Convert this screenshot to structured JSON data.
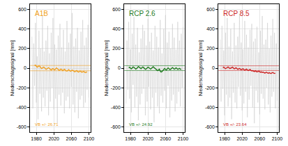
{
  "chart_data": [
    {
      "type": "line",
      "title": "A1B",
      "color": "#f0a020",
      "y_label": "Niederschlagssignal [mm]",
      "annotation": "VB +/- 26.71",
      "vb_band": 26.71,
      "x": [
        1970,
        1972,
        1974,
        1976,
        1978,
        1980,
        1982,
        1984,
        1986,
        1988,
        1990,
        1992,
        1994,
        1996,
        1998,
        2000,
        2002,
        2004,
        2006,
        2008,
        2010,
        2012,
        2014,
        2016,
        2018,
        2020,
        2022,
        2024,
        2026,
        2028,
        2030,
        2032,
        2034,
        2036,
        2038,
        2040,
        2042,
        2044,
        2046,
        2048,
        2050,
        2052,
        2054,
        2056,
        2058,
        2060,
        2062,
        2064,
        2066,
        2068,
        2070,
        2072,
        2074,
        2076,
        2078,
        2080,
        2082,
        2084,
        2086,
        2088,
        2090,
        2092,
        2094,
        2096,
        2098,
        2100
      ],
      "xlim": [
        1966,
        2104
      ],
      "xticks": [
        1980,
        2020,
        2060,
        2100
      ],
      "ylim": [
        -650,
        650
      ],
      "yticks": [
        -600,
        -400,
        -200,
        0,
        200,
        400,
        600
      ],
      "grid": true,
      "series": [
        {
          "color": "#c8c8c8",
          "values": [
            320,
            -410,
            250,
            -180,
            460,
            -350,
            120,
            -520,
            380,
            -260,
            200,
            -440,
            540,
            -300,
            170,
            -390,
            280,
            -230,
            430,
            -480,
            150,
            -340,
            360,
            -200,
            510,
            -420,
            240,
            -310,
            190,
            -560,
            330,
            -270,
            450,
            -380,
            210,
            -250,
            390,
            -460,
            170,
            -330,
            480,
            -290,
            260,
            -410,
            350,
            -190,
            560,
            -370,
            220,
            -450,
            300,
            -240,
            410,
            -510,
            180,
            -320,
            370,
            -280,
            490,
            -400,
            230,
            -350,
            310,
            -220,
            440,
            -300
          ]
        },
        {
          "color": "#f0a020",
          "values": [
            null,
            null,
            null,
            25,
            30,
            20,
            10,
            15,
            25,
            18,
            5,
            -5,
            0,
            10,
            8,
            -2,
            -12,
            -8,
            0,
            5,
            -3,
            -15,
            -20,
            -10,
            -5,
            -12,
            -18,
            -8,
            2,
            -5,
            -15,
            -22,
            -18,
            -10,
            -14,
            -25,
            -20,
            -12,
            -18,
            -28,
            -30,
            -22,
            -16,
            -24,
            -32,
            -28,
            -20,
            -25,
            -35,
            -38,
            -30,
            -26,
            -33,
            -40,
            -36,
            -30,
            -35,
            -42,
            -38,
            -34,
            -40,
            -45,
            -42,
            -38,
            null,
            null
          ]
        }
      ]
    },
    {
      "type": "line",
      "title": "RCP 2.6",
      "color": "#1e7b1e",
      "y_label": "Niederschlagssignal [mm]",
      "annotation": "VB +/- 24.92",
      "vb_band": 24.92,
      "x": [
        1970,
        1972,
        1974,
        1976,
        1978,
        1980,
        1982,
        1984,
        1986,
        1988,
        1990,
        1992,
        1994,
        1996,
        1998,
        2000,
        2002,
        2004,
        2006,
        2008,
        2010,
        2012,
        2014,
        2016,
        2018,
        2020,
        2022,
        2024,
        2026,
        2028,
        2030,
        2032,
        2034,
        2036,
        2038,
        2040,
        2042,
        2044,
        2046,
        2048,
        2050,
        2052,
        2054,
        2056,
        2058,
        2060,
        2062,
        2064,
        2066,
        2068,
        2070,
        2072,
        2074,
        2076,
        2078,
        2080,
        2082,
        2084,
        2086,
        2088,
        2090,
        2092,
        2094,
        2096,
        2098,
        2100
      ],
      "xlim": [
        1966,
        2104
      ],
      "xticks": [
        1980,
        2020,
        2060,
        2100
      ],
      "ylim": [
        -650,
        650
      ],
      "yticks": [
        -600,
        -400,
        -200,
        0,
        200,
        400,
        600
      ],
      "grid": true,
      "series": [
        {
          "color": "#c8c8c8",
          "values": [
            -360,
            280,
            -220,
            470,
            -310,
            190,
            -450,
            350,
            -170,
            520,
            -400,
            240,
            -290,
            410,
            -530,
            160,
            -370,
            300,
            -260,
            440,
            -210,
            380,
            -480,
            230,
            -340,
            500,
            -190,
            270,
            -420,
            360,
            -300,
            180,
            -550,
            430,
            -250,
            320,
            -390,
            210,
            -460,
            490,
            -280,
            150,
            -350,
            400,
            -230,
            540,
            -410,
            260,
            -180,
            370,
            -500,
            200,
            -330,
            450,
            -270,
            310,
            -440,
            190,
            -360,
            470,
            -240,
            280,
            -390,
            350,
            -200,
            420
          ]
        },
        {
          "color": "#1e7b1e",
          "values": [
            null,
            null,
            null,
            5,
            10,
            0,
            -8,
            2,
            12,
            8,
            -3,
            -10,
            -5,
            5,
            15,
            10,
            0,
            -6,
            4,
            12,
            6,
            -4,
            -12,
            -8,
            2,
            10,
            5,
            -3,
            -10,
            -2,
            8,
            14,
            6,
            -2,
            -10,
            -18,
            -25,
            -20,
            -10,
            -30,
            -40,
            -35,
            -22,
            -10,
            -4,
            -12,
            -20,
            -8,
            2,
            -5,
            -15,
            -10,
            0,
            6,
            -2,
            -10,
            -6,
            4,
            -3,
            -12,
            -8,
            -2,
            -10,
            -14,
            null,
            null
          ]
        }
      ]
    },
    {
      "type": "line",
      "title": "RCP 8.5",
      "color": "#cc1f1f",
      "y_label": "Niederschlagssignal [mm]",
      "annotation": "VB +/- 23.64",
      "vb_band": 23.64,
      "x": [
        1970,
        1972,
        1974,
        1976,
        1978,
        1980,
        1982,
        1984,
        1986,
        1988,
        1990,
        1992,
        1994,
        1996,
        1998,
        2000,
        2002,
        2004,
        2006,
        2008,
        2010,
        2012,
        2014,
        2016,
        2018,
        2020,
        2022,
        2024,
        2026,
        2028,
        2030,
        2032,
        2034,
        2036,
        2038,
        2040,
        2042,
        2044,
        2046,
        2048,
        2050,
        2052,
        2054,
        2056,
        2058,
        2060,
        2062,
        2064,
        2066,
        2068,
        2070,
        2072,
        2074,
        2076,
        2078,
        2080,
        2082,
        2084,
        2086,
        2088,
        2090,
        2092,
        2094,
        2096,
        2098,
        2100
      ],
      "xlim": [
        1966,
        2104
      ],
      "xticks": [
        1980,
        2020,
        2060,
        2100
      ],
      "ylim": [
        -650,
        650
      ],
      "yticks": [
        -600,
        -400,
        -200,
        0,
        200,
        400,
        600
      ],
      "grid": true,
      "series": [
        {
          "color": "#c8c8c8",
          "values": [
            290,
            -340,
            430,
            -210,
            180,
            -480,
            360,
            -270,
            510,
            -390,
            220,
            -300,
            400,
            -520,
            170,
            -250,
            460,
            -350,
            230,
            -410,
            320,
            -190,
            550,
            -280,
            260,
            -430,
            190,
            -360,
            480,
            -240,
            340,
            -500,
            210,
            -320,
            390,
            -180,
            450,
            -400,
            270,
            -560,
            300,
            -230,
            420,
            -350,
            160,
            -470,
            380,
            -260,
            530,
            -310,
            240,
            -420,
            290,
            -200,
            460,
            -370,
            200,
            -450,
            330,
            -290,
            500,
            -240,
            360,
            -410,
            250,
            -330
          ]
        },
        {
          "color": "#cc1f1f",
          "values": [
            null,
            null,
            null,
            5,
            10,
            2,
            -5,
            0,
            8,
            12,
            4,
            -3,
            0,
            6,
            10,
            2,
            -6,
            -2,
            4,
            -4,
            -12,
            -8,
            -2,
            -10,
            -16,
            -12,
            -6,
            -14,
            -20,
            -15,
            -10,
            -18,
            -24,
            -20,
            -14,
            -22,
            -28,
            -25,
            -30,
            -35,
            -28,
            -32,
            -38,
            -34,
            -30,
            -36,
            -42,
            -38,
            -44,
            -40,
            -46,
            -50,
            -45,
            -42,
            -48,
            -52,
            -46,
            -50,
            -55,
            -48,
            -44,
            -50,
            -54,
            -52,
            null,
            null
          ]
        }
      ]
    }
  ]
}
